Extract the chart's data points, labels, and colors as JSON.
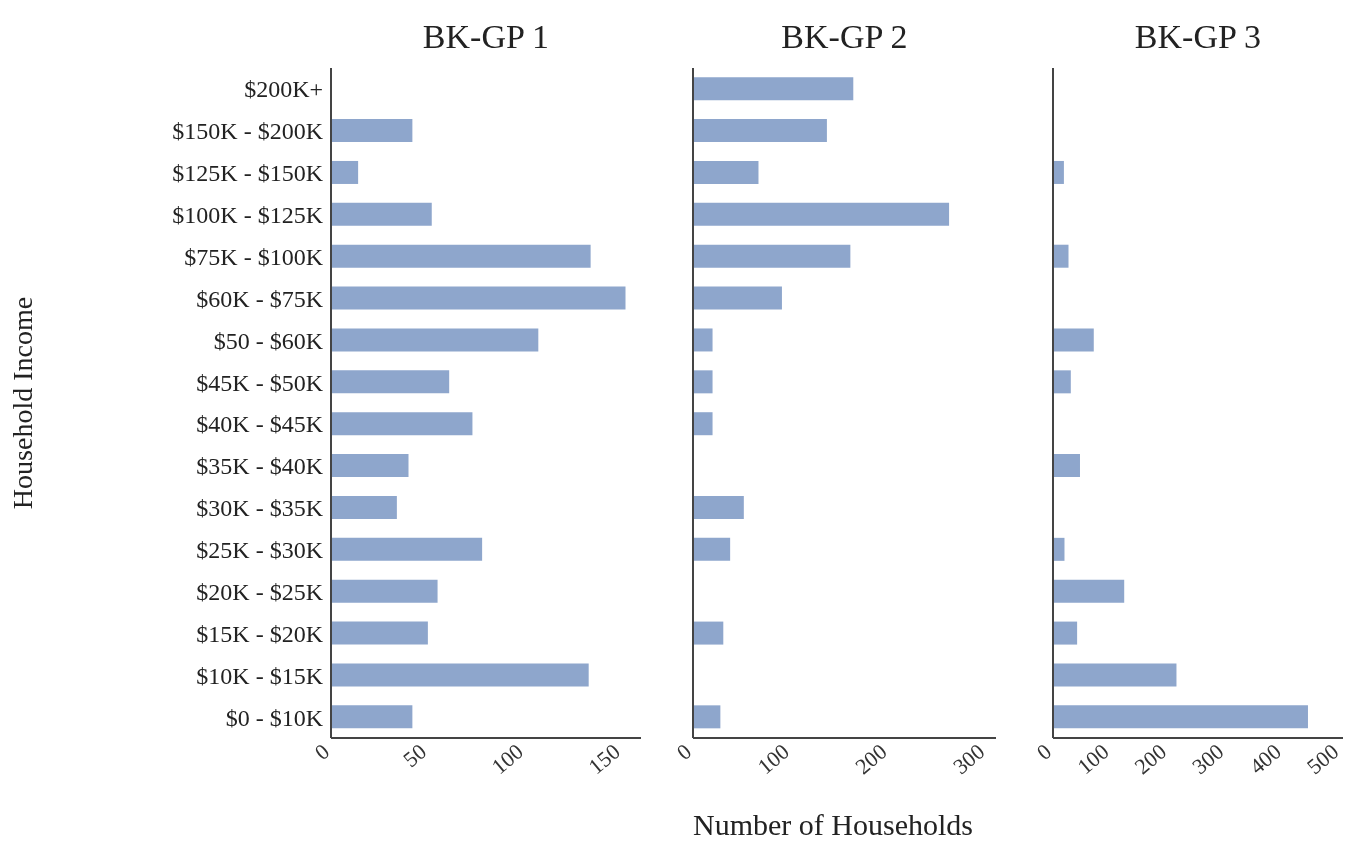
{
  "chart_data": [
    {
      "type": "bar",
      "orientation": "horizontal",
      "title": "BK-GP 1",
      "ylabel": "Household Income",
      "categories": [
        "$200K+",
        "$150K - $200K",
        "$125K - $150K",
        "$100K - $125K",
        "$75K - $100K",
        "$60K - $75K",
        "$50 - $60K",
        "$45K - $50K",
        "$40K - $45K",
        "$35K - $40K",
        "$30K - $35K",
        "$25K - $30K",
        "$20K - $25K",
        "$15K - $20K",
        "$10K - $15K",
        "$0 - $10K"
      ],
      "color": "#8ea6cc",
      "values": [
        0,
        42,
        14,
        52,
        134,
        152,
        107,
        61,
        73,
        40,
        34,
        78,
        55,
        50,
        133,
        42
      ],
      "xlim": [
        0,
        160
      ],
      "xticks": [
        0,
        50,
        100,
        150
      ],
      "grid": false
    },
    {
      "type": "bar",
      "orientation": "horizontal",
      "title": "BK-GP 2",
      "xlabel": "Number of Households",
      "tick_labels": "x",
      "categories": [
        null,
        null,
        null,
        null,
        null,
        null,
        null,
        null,
        null,
        null,
        null,
        null,
        null,
        null,
        null,
        null
      ],
      "color": "#8ea6cc",
      "values": [
        164,
        137,
        67,
        262,
        161,
        91,
        20,
        20,
        20,
        0,
        52,
        38,
        0,
        31,
        0,
        28
      ],
      "xlim": [
        0,
        310
      ],
      "xticks": [
        0,
        100,
        200,
        300
      ],
      "grid": false
    },
    {
      "type": "bar",
      "orientation": "horizontal",
      "title": "BK-GP 3",
      "tick_labels": "x",
      "categories": [
        null,
        null,
        null,
        null,
        null,
        null,
        null,
        null,
        null,
        null,
        null,
        null,
        null,
        null,
        null,
        null
      ],
      "color": "#8ea6cc",
      "values": [
        0,
        0,
        19,
        null,
        27,
        0,
        71,
        31,
        0,
        47,
        0,
        20,
        124,
        42,
        215,
        444
      ],
      "xlim": [
        0,
        505
      ],
      "xticks": [
        0,
        100,
        200,
        300,
        400,
        500
      ],
      "grid": false
    }
  ]
}
